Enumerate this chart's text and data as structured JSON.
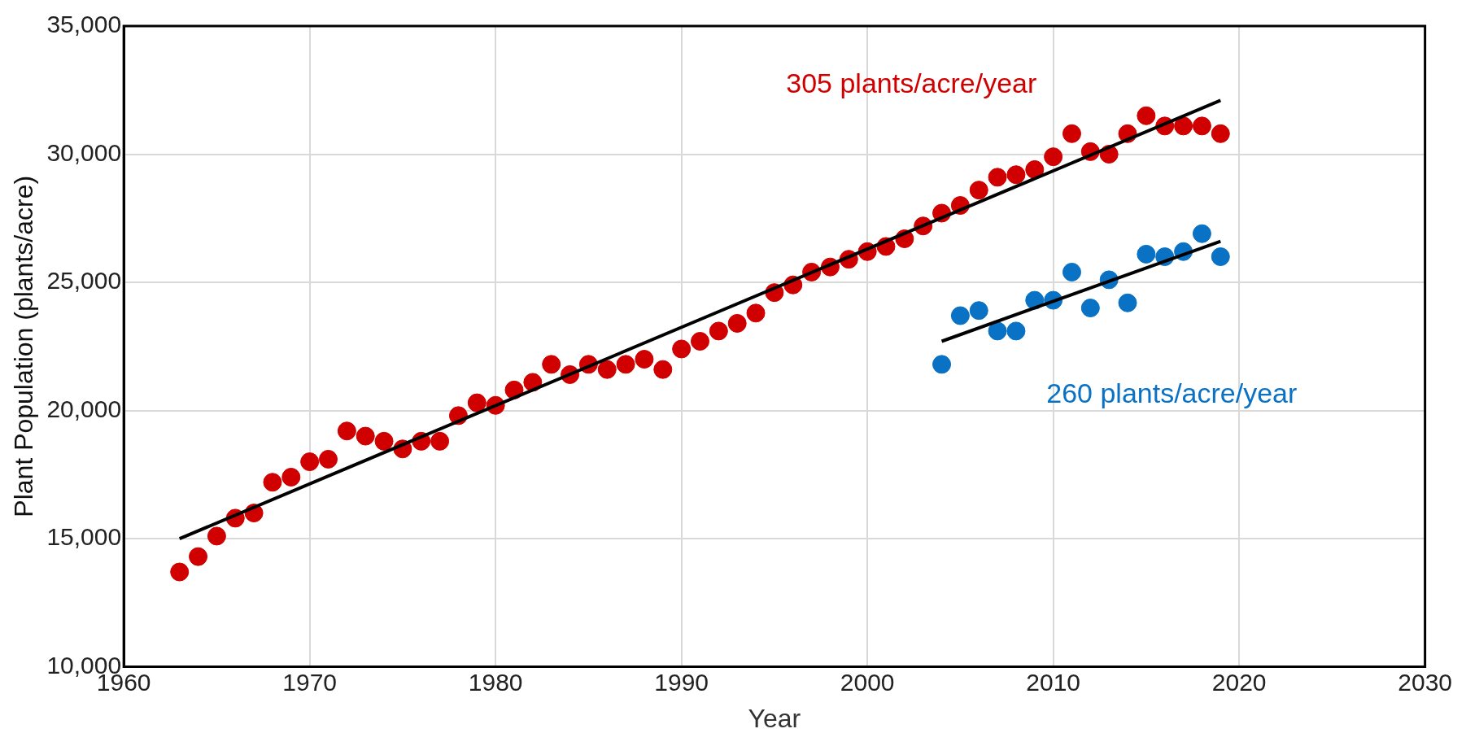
{
  "chart_data": {
    "type": "scatter",
    "xlabel": "Year",
    "ylabel": "Plant Population (plants/acre)",
    "xlim": [
      1960,
      2030
    ],
    "xticks": [
      1960,
      1970,
      1980,
      1990,
      2000,
      2010,
      2020,
      2030
    ],
    "ylim": [
      10000,
      35000
    ],
    "yticks": [
      {
        "value": 10000,
        "label": "10,000"
      },
      {
        "value": 15000,
        "label": "15,000"
      },
      {
        "value": 20000,
        "label": "20,000"
      },
      {
        "value": 25000,
        "label": "25,000"
      },
      {
        "value": 30000,
        "label": "30,000"
      },
      {
        "value": 35000,
        "label": "35,000"
      }
    ],
    "grid": true,
    "legend": false,
    "marker": "circle",
    "series": [
      {
        "color": "#d00000",
        "x": [
          1963,
          1964,
          1965,
          1966,
          1967,
          1968,
          1969,
          1970,
          1971,
          1972,
          1973,
          1974,
          1975,
          1976,
          1977,
          1978,
          1979,
          1980,
          1981,
          1982,
          1983,
          1984,
          1985,
          1986,
          1987,
          1988,
          1989,
          1990,
          1991,
          1992,
          1993,
          1994,
          1995,
          1996,
          1997,
          1998,
          1999,
          2000,
          2001,
          2002,
          2003,
          2004,
          2005,
          2006,
          2007,
          2008,
          2009,
          2010,
          2011,
          2012,
          2013,
          2014,
          2015,
          2016,
          2017,
          2018,
          2019
        ],
        "values": [
          13700,
          14300,
          15100,
          15800,
          16000,
          17200,
          17400,
          18000,
          18100,
          19200,
          19000,
          18800,
          18500,
          18800,
          18800,
          19800,
          20300,
          20200,
          20800,
          21100,
          21800,
          21400,
          21800,
          21600,
          21800,
          22000,
          21600,
          22400,
          22700,
          23100,
          23400,
          23800,
          24600,
          24900,
          25400,
          25600,
          25900,
          26200,
          26400,
          26700,
          27200,
          27700,
          28000,
          28600,
          29100,
          29200,
          29400,
          29900,
          30800,
          30100,
          30000,
          30800,
          31500,
          31100,
          31100,
          31100,
          30800
        ]
      },
      {
        "color": "#0a72c4",
        "x": [
          2004,
          2005,
          2006,
          2007,
          2008,
          2009,
          2010,
          2011,
          2012,
          2013,
          2014,
          2015,
          2016,
          2017,
          2018,
          2019
        ],
        "values": [
          21800,
          23700,
          23900,
          23100,
          23100,
          24300,
          24300,
          25400,
          24000,
          25100,
          24200,
          26100,
          26000,
          26200,
          26900,
          26000
        ]
      },
      {
        "type": "line",
        "color": "#000000",
        "marker": "none",
        "x": [
          1963,
          2019
        ],
        "values": [
          15000,
          32100
        ]
      },
      {
        "type": "line",
        "color": "#000000",
        "marker": "none",
        "x": [
          2004,
          2019
        ],
        "values": [
          22700,
          26600
        ]
      }
    ],
    "annotations": [
      "305 plants/acre/year",
      "260 plants/acre/year"
    ]
  }
}
